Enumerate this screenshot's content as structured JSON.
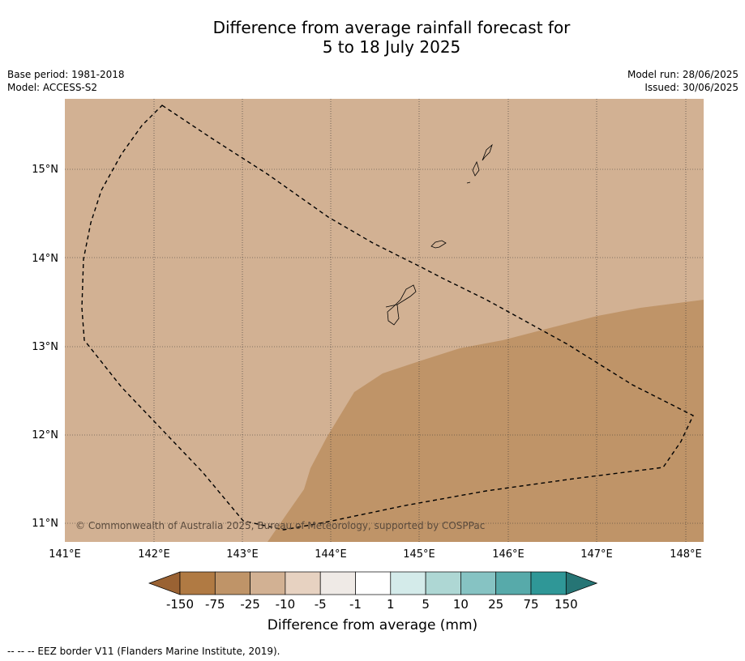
{
  "title_line1": "Difference from average rainfall forecast for",
  "title_line2": "5 to 18 July 2025",
  "base_period": "Base period: 1981-2018",
  "model": "Model: ACCESS-S2",
  "model_run": "Model run: 28/06/2025",
  "issued": "Issued: 30/06/2025",
  "copyright": "© Commonwealth of Australia 2025, Bureau of Meteorology, supported by COSPPac",
  "lat_labels": [
    "15°N",
    "14°N",
    "13°N",
    "12°N",
    "11°N"
  ],
  "lon_labels": [
    "141°E",
    "142°E",
    "143°E",
    "144°E",
    "145°E",
    "146°E",
    "147°E",
    "148°E"
  ],
  "colorbar": {
    "title": "Difference from average (mm)",
    "labels": [
      "-150",
      "-75",
      "-25",
      "-10",
      "-5",
      "-1",
      "1",
      "5",
      "10",
      "25",
      "75",
      "150"
    ],
    "colors": [
      "#9a6233",
      "#b07a43",
      "#bf9468",
      "#d2b193",
      "#e7d2c1",
      "#efeae6",
      "#ffffff",
      "#d4ebea",
      "#aed7d4",
      "#86c3c3",
      "#57aaaa",
      "#2f9797",
      "#267575"
    ]
  },
  "footer": "--  --  -- EEZ border V11 (Flanders Marine Institute, 2019)."
}
